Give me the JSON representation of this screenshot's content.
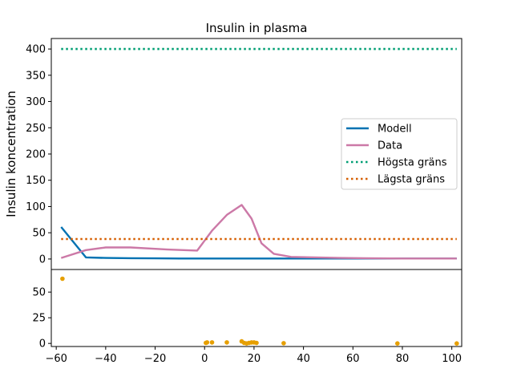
{
  "chart_data": [
    {
      "type": "line",
      "title": "Insulin in plasma",
      "xlabel": "",
      "ylabel": "Insulin koncentration",
      "xlim": [
        -62,
        104
      ],
      "ylim": [
        -20,
        420
      ],
      "yticks": [
        0,
        50,
        100,
        150,
        200,
        250,
        300,
        350,
        400
      ],
      "xticks_shown": false,
      "grid": false,
      "legend_position": "center-right",
      "series": [
        {
          "name": "Modell",
          "color": "#0072b2",
          "style": "solid",
          "x": [
            -58,
            -48,
            -40,
            -30,
            -20,
            -10,
            0,
            10,
            20,
            30,
            40,
            60,
            80,
            102
          ],
          "y": [
            61,
            3,
            2,
            1.5,
            1.2,
            1,
            1,
            1,
            1,
            1,
            1,
            1,
            1,
            1
          ]
        },
        {
          "name": "Data",
          "color": "#cc79a7",
          "style": "solid",
          "x": [
            -58,
            -48,
            -40,
            -30,
            -15,
            -3,
            3,
            9,
            15,
            19,
            23,
            28,
            35,
            45,
            55,
            65,
            80,
            102
          ],
          "y": [
            2,
            17,
            22,
            22,
            18,
            16,
            54,
            84,
            103,
            77,
            30,
            10,
            4,
            3,
            2,
            1.5,
            1,
            1
          ]
        },
        {
          "name": "Högsta gräns",
          "color": "#009e73",
          "style": "dotted",
          "x": [
            -58,
            102
          ],
          "y": [
            400,
            400
          ]
        },
        {
          "name": "Lägsta gräns",
          "color": "#d55e00",
          "style": "dotted",
          "x": [
            -58,
            102
          ],
          "y": [
            38,
            38
          ]
        }
      ]
    },
    {
      "type": "scatter",
      "xlim": [
        -62,
        104
      ],
      "ylim": [
        -3,
        72
      ],
      "xticks": [
        -60,
        -40,
        -20,
        0,
        20,
        40,
        60,
        80,
        100
      ],
      "yticks": [
        0,
        25,
        50
      ],
      "grid": false,
      "series": [
        {
          "color": "#e69f00",
          "x": [
            -57.5,
            0.5,
            1,
            3,
            9,
            15,
            16,
            17,
            18,
            19,
            20,
            21,
            32,
            78,
            102
          ],
          "y": [
            63,
            0.5,
            1,
            1,
            1,
            2,
            0.5,
            0,
            0.5,
            1,
            1,
            0.5,
            0.2,
            0,
            0
          ]
        }
      ]
    }
  ]
}
